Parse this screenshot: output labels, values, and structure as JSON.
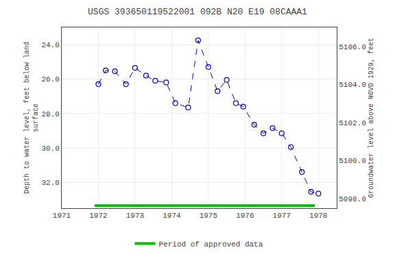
{
  "chart_data": {
    "type": "line",
    "title": "USGS 393650119522001 092B N20 E19 08CAAA1",
    "ylabel": "Depth to water level, feet below land\nsurface",
    "y2label": "Groundwater level above NGVD 1929, feet",
    "series": [
      {
        "x": [
          1972.0,
          1972.2,
          1972.45,
          1972.75,
          1973.0,
          1973.3,
          1973.55,
          1973.85,
          1974.1,
          1974.45,
          1974.72,
          1975.0,
          1975.25,
          1975.5,
          1975.75,
          1975.95,
          1976.25,
          1976.5,
          1976.75,
          1977.0,
          1977.25,
          1977.55,
          1977.8,
          1978.0
        ],
        "values": [
          26.3,
          25.5,
          25.55,
          26.3,
          25.35,
          25.8,
          26.1,
          26.2,
          27.4,
          27.65,
          23.75,
          25.3,
          26.7,
          26.05,
          27.4,
          27.6,
          28.65,
          29.15,
          28.85,
          29.15,
          29.95,
          31.4,
          32.55,
          32.65
        ],
        "color": "#0000cc",
        "line_style": "dashed",
        "marker": "circle-open"
      },
      {
        "name": "Period of approved data",
        "x": [
          1971.9,
          1977.9
        ],
        "values": [
          33.35,
          33.35
        ],
        "color": "#00bb00",
        "line_style": "solid"
      }
    ],
    "xlim": [
      1971,
      1978.5
    ],
    "xticks": [
      1971,
      1972,
      1973,
      1974,
      1975,
      1976,
      1977,
      1978
    ],
    "ylim": [
      33.5,
      23.0
    ],
    "yticks": [
      {
        "value": 24.0,
        "label": "24.0"
      },
      {
        "value": 26.0,
        "label": "26.0"
      },
      {
        "value": 28.0,
        "label": "28.0"
      },
      {
        "value": 30.0,
        "label": "30.0"
      },
      {
        "value": 32.0,
        "label": "32.0"
      }
    ],
    "y2lim": [
      5097.5,
      5107.0
    ],
    "y2ticks": [
      {
        "value": 5106.0,
        "label": "5106.0"
      },
      {
        "value": 5104.0,
        "label": "5104.0"
      },
      {
        "value": 5102.0,
        "label": "5102.0"
      },
      {
        "value": 5100.0,
        "label": "5100.0"
      },
      {
        "value": 5098.0,
        "label": "5098.0"
      }
    ],
    "grid": true,
    "legend": "bottom"
  }
}
